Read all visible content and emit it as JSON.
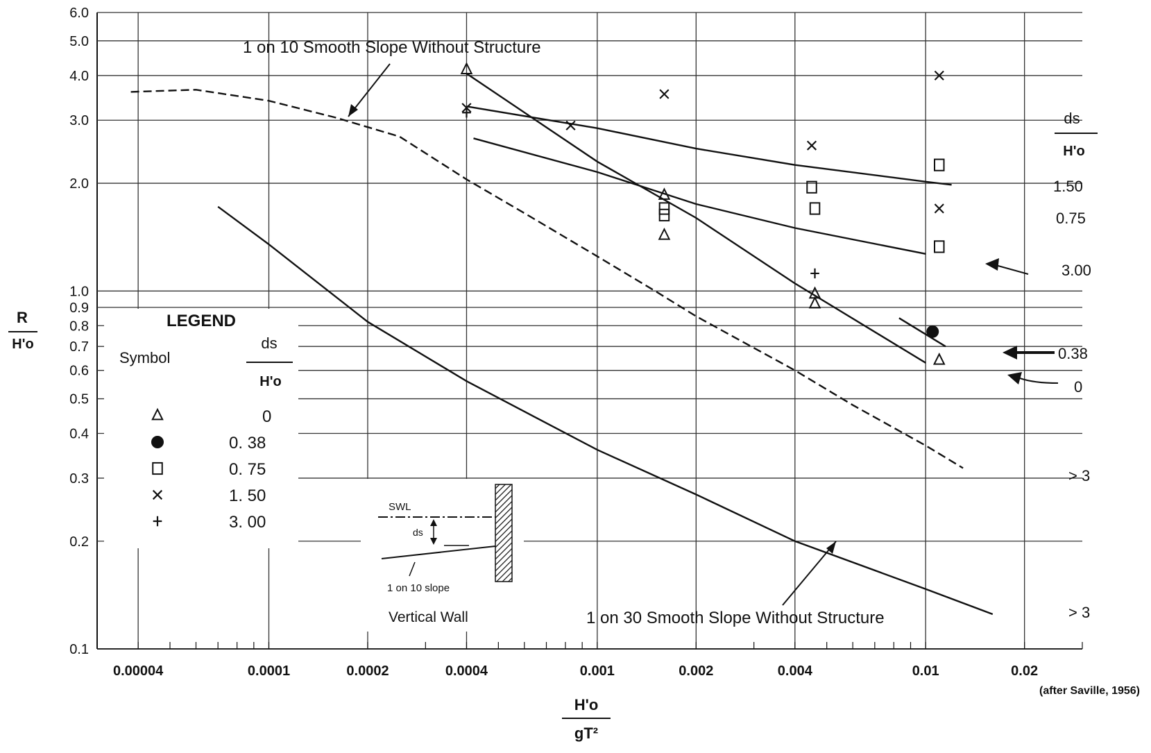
{
  "chart_data": {
    "type": "scatter",
    "x_scale": "log",
    "y_scale": "log",
    "xlim": [
      3e-05,
      0.03
    ],
    "ylim": [
      0.1,
      6.0
    ],
    "grid": true,
    "x_ticks": [
      {
        "value": 4e-05,
        "label": "0.00004"
      },
      {
        "value": 0.0001,
        "label": "0.0001"
      },
      {
        "value": 0.0002,
        "label": "0.0002"
      },
      {
        "value": 0.0004,
        "label": "0.0004"
      },
      {
        "value": 0.001,
        "label": "0.001"
      },
      {
        "value": 0.002,
        "label": "0.002"
      },
      {
        "value": 0.004,
        "label": "0.004"
      },
      {
        "value": 0.01,
        "label": "0.01"
      },
      {
        "value": 0.02,
        "label": "0.02"
      }
    ],
    "y_ticks": [
      {
        "value": 0.1,
        "label": "0.1"
      },
      {
        "value": 0.2,
        "label": "0.2"
      },
      {
        "value": 0.3,
        "label": "0.3"
      },
      {
        "value": 0.4,
        "label": "0.4"
      },
      {
        "value": 0.5,
        "label": "0.5"
      },
      {
        "value": 0.6,
        "label": "0.6"
      },
      {
        "value": 0.7,
        "label": "0.7"
      },
      {
        "value": 0.8,
        "label": "0.8"
      },
      {
        "value": 0.9,
        "label": "0.9"
      },
      {
        "value": 1.0,
        "label": "1.0"
      },
      {
        "value": 2.0,
        "label": "2.0"
      },
      {
        "value": 3.0,
        "label": "3.0"
      },
      {
        "value": 4.0,
        "label": "4.0"
      },
      {
        "value": 5.0,
        "label": "5.0"
      },
      {
        "value": 6.0,
        "label": "6.0"
      }
    ],
    "ylabel_num": "R",
    "ylabel_den": "H'o",
    "xlabel_num": "H'o",
    "xlabel_den": "gT²",
    "credit": "(after Saville, 1956)",
    "legend": {
      "title": "LEGEND",
      "symbol_header": "Symbol",
      "ratio_num": "ds",
      "ratio_den": "H'o",
      "entries": [
        {
          "marker": "triangle",
          "value": "0"
        },
        {
          "marker": "dot",
          "value": "0. 38"
        },
        {
          "marker": "square",
          "value": "0. 75"
        },
        {
          "marker": "x",
          "value": "1. 50"
        },
        {
          "marker": "plus",
          "value": "3. 00"
        }
      ]
    },
    "right_labels": {
      "header_num": "ds",
      "header_den": "H'o",
      "items": [
        "1.50",
        "0.75",
        "3.00",
        "0.38",
        "0",
        "> 3",
        "> 3"
      ]
    },
    "annotations": {
      "slope10": "1 on 10 Smooth Slope Without Structure",
      "slope30": "1 on 30 Smooth Slope Without Structure"
    },
    "inset": {
      "swl": "SWL",
      "ds": "ds",
      "slope": "1 on 10 slope",
      "title": "Vertical Wall"
    },
    "curves": [
      {
        "name": "1 on 10 Smooth Slope Without Structure",
        "dashed": true,
        "points": [
          [
            3.8e-05,
            3.6
          ],
          [
            6e-05,
            3.65
          ],
          [
            0.0001,
            3.4
          ],
          [
            0.00016,
            3.05
          ],
          [
            0.00025,
            2.7
          ],
          [
            0.0004,
            2.05
          ],
          [
            0.0006,
            1.65
          ],
          [
            0.001,
            1.25
          ],
          [
            0.0015,
            1.0
          ],
          [
            0.002,
            0.85
          ],
          [
            0.004,
            0.6
          ],
          [
            0.006,
            0.48
          ],
          [
            0.01,
            0.37
          ],
          [
            0.013,
            0.32
          ]
        ]
      },
      {
        "name": "1 on 30 Smooth Slope Without Structure",
        "dashed": false,
        "points": [
          [
            7e-05,
            1.72
          ],
          [
            0.0001,
            1.35
          ],
          [
            0.0002,
            0.82
          ],
          [
            0.0004,
            0.56
          ],
          [
            0.001,
            0.36
          ],
          [
            0.002,
            0.27
          ],
          [
            0.004,
            0.2
          ],
          [
            0.01,
            0.147
          ],
          [
            0.016,
            0.125
          ]
        ]
      },
      {
        "name": "1.50",
        "dashed": false,
        "points": [
          [
            0.0004,
            3.28
          ],
          [
            0.001,
            2.85
          ],
          [
            0.002,
            2.5
          ],
          [
            0.004,
            2.25
          ],
          [
            0.01,
            2.02
          ],
          [
            0.012,
            1.98
          ]
        ]
      },
      {
        "name": "3.00",
        "dashed": false,
        "points": [
          [
            0.00042,
            2.67
          ],
          [
            0.001,
            2.15
          ],
          [
            0.002,
            1.75
          ],
          [
            0.004,
            1.5
          ],
          [
            0.01,
            1.27
          ]
        ]
      },
      {
        "name": "0",
        "dashed": false,
        "points": [
          [
            0.0004,
            4.05
          ],
          [
            0.001,
            2.3
          ],
          [
            0.002,
            1.6
          ],
          [
            0.004,
            1.05
          ],
          [
            0.01,
            0.63
          ]
        ]
      },
      {
        "name": "0.38",
        "dashed": false,
        "points": [
          [
            0.0083,
            0.84
          ],
          [
            0.0115,
            0.7
          ]
        ]
      }
    ],
    "points": [
      {
        "marker": "triangle",
        "x": 0.0004,
        "y": 4.15
      },
      {
        "marker": "x",
        "x": 0.0004,
        "y": 3.25
      },
      {
        "marker": "plus",
        "x": 0.0004,
        "y": 3.15
      },
      {
        "marker": "x",
        "x": 0.00083,
        "y": 2.9
      },
      {
        "marker": "x",
        "x": 0.0016,
        "y": 3.55
      },
      {
        "marker": "triangle",
        "x": 0.0016,
        "y": 1.85
      },
      {
        "marker": "square",
        "x": 0.0016,
        "y": 1.7
      },
      {
        "marker": "square",
        "x": 0.0016,
        "y": 1.63
      },
      {
        "marker": "triangle",
        "x": 0.0016,
        "y": 1.43
      },
      {
        "marker": "x",
        "x": 0.0045,
        "y": 2.55
      },
      {
        "marker": "square",
        "x": 0.0045,
        "y": 1.95
      },
      {
        "marker": "square",
        "x": 0.0046,
        "y": 1.7
      },
      {
        "marker": "plus",
        "x": 0.0046,
        "y": 1.12
      },
      {
        "marker": "triangle",
        "x": 0.0046,
        "y": 0.98
      },
      {
        "marker": "triangle",
        "x": 0.0046,
        "y": 0.92
      },
      {
        "marker": "x",
        "x": 0.011,
        "y": 4.0
      },
      {
        "marker": "square",
        "x": 0.011,
        "y": 2.25
      },
      {
        "marker": "x",
        "x": 0.011,
        "y": 1.7
      },
      {
        "marker": "square",
        "x": 0.011,
        "y": 1.33
      },
      {
        "marker": "dot",
        "x": 0.0105,
        "y": 0.77
      },
      {
        "marker": "triangle",
        "x": 0.011,
        "y": 0.64
      }
    ]
  }
}
